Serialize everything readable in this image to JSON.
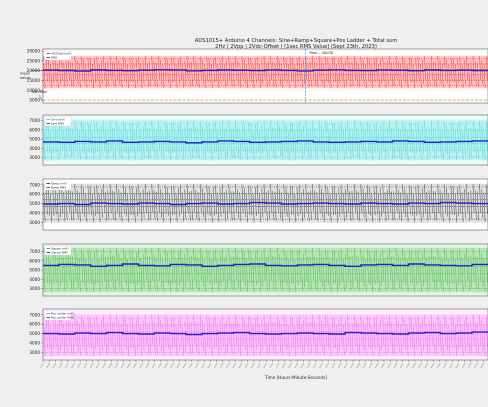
{
  "figure": {
    "title_line1": "ADS1015+ Arduino 4 Channels: Sine+Ramp+Square+Pos Ladder + Total sum",
    "title_line2": "2Hz | 2Vpp | 2Vdc-Offset | [1sec RMS Value] (Sept 23th, 2023)",
    "xlabel": "Time [Hours:Minute:Seconds]",
    "colors": {
      "sum_band": "#ff0000",
      "sine_band": "#22cccc",
      "ramp_band": "#111111",
      "square_band": "#22aa22",
      "ladder_band": "#ee44ee",
      "rms_line": "#1f1fd0",
      "ref_line": "#e0b000",
      "marker_line": "#33aadd"
    }
  },
  "chart_data": [
    {
      "type": "line",
      "panel": "sum",
      "yticks": [
        "30000",
        "25000",
        "20000",
        "15000",
        "10000",
        "5000"
      ],
      "ylim": [
        3500,
        31000
      ],
      "legend": [
        "ADSTotal (mV)",
        "RMS"
      ],
      "annotations": {
        "max": "Max -- VALUE",
        "mean": "mean\nvalue",
        "min": "Min-Max"
      },
      "band": [
        11000,
        27500
      ],
      "rms": [
        20200,
        20050,
        19800,
        20300,
        20100,
        19950,
        20200,
        20400,
        20250,
        19900,
        20100,
        20300,
        20150,
        20000,
        20250,
        20100,
        19850,
        20200,
        20350,
        20100,
        20000,
        20250,
        20150,
        19950,
        20300,
        20100,
        20200,
        20050
      ],
      "ref_y": 5000
    },
    {
      "type": "line",
      "panel": "sine",
      "yticks": [
        "7000",
        "6000",
        "5000",
        "4000",
        "3000"
      ],
      "ylim": [
        2200,
        7600
      ],
      "legend": [
        "Sine (mV)",
        "Sine RMS"
      ],
      "band": [
        2700,
        7000
      ],
      "rms": [
        4700,
        4650,
        4750,
        4700,
        4800,
        4650,
        4700,
        4750,
        4700,
        4600,
        4700,
        4800,
        4750,
        4650,
        4700,
        4750,
        4800,
        4700,
        4650,
        4700,
        4750,
        4700,
        4800,
        4750,
        4650,
        4700,
        4750,
        4800
      ]
    },
    {
      "type": "line",
      "panel": "ramp",
      "yticks": [
        "7000",
        "6000",
        "5000",
        "4000",
        "3000"
      ],
      "ylim": [
        2200,
        7600
      ],
      "legend": [
        "Ramp (mV)",
        "Ramp RMS"
      ],
      "band": [
        3000,
        7100
      ],
      "rms": [
        4950,
        5000,
        4900,
        5050,
        5000,
        4950,
        5050,
        5000,
        4900,
        5000,
        5050,
        4950,
        5000,
        5100,
        5050,
        4950,
        5000,
        5050,
        5000,
        4950,
        5050,
        5000,
        4950,
        5050,
        5000,
        5100,
        5050,
        5000
      ]
    },
    {
      "type": "line",
      "panel": "square",
      "yticks": [
        "7000",
        "6000",
        "5000",
        "4000",
        "3000"
      ],
      "ylim": [
        2200,
        7800
      ],
      "legend": [
        "Square (mV)",
        "Square RMS"
      ],
      "band": [
        2600,
        7400
      ],
      "rms": [
        5500,
        5600,
        5550,
        5400,
        5500,
        5650,
        5500,
        5450,
        5600,
        5550,
        5400,
        5500,
        5600,
        5650,
        5500,
        5450,
        5550,
        5600,
        5500,
        5400,
        5550,
        5600,
        5500,
        5650,
        5550,
        5500,
        5450,
        5600
      ]
    },
    {
      "type": "line",
      "panel": "ladder",
      "yticks": [
        "7000",
        "6000",
        "5000",
        "4000",
        "3000"
      ],
      "ylim": [
        2200,
        7600
      ],
      "legend": [
        "Pos Ladder (mV)",
        "Pos Ladder RMS"
      ],
      "band": [
        2600,
        7000
      ],
      "rms": [
        5000,
        4950,
        5050,
        5000,
        5100,
        5000,
        4950,
        5050,
        5000,
        4900,
        5000,
        5050,
        5100,
        5000,
        4950,
        5000,
        5050,
        5000,
        4950,
        5100,
        5050,
        5000,
        4950,
        5050,
        5100,
        5000,
        5050,
        5150
      ]
    }
  ]
}
